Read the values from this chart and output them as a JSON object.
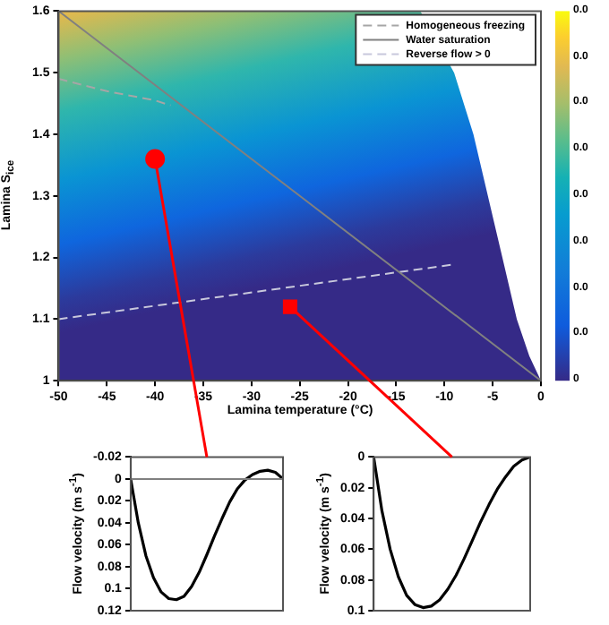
{
  "chart_data": [
    {
      "type": "line",
      "xlabel": "Lamina  temperature (°C)",
      "ylabel": "Lamina S$_{ice}$",
      "xlim": [
        -50,
        0
      ],
      "xticks": [
        -50,
        -45,
        -40,
        -35,
        -30,
        -25,
        -20,
        -15,
        -10,
        -5,
        0
      ],
      "ylim": [
        1,
        1.6
      ],
      "yticks": [
        1,
        1.1,
        1.2,
        1.3,
        1.4,
        1.5,
        1.6
      ],
      "legend": "top right",
      "annotations": [
        "0.0",
        "0.0",
        "0.0",
        "0.0",
        "0.0",
        "0.0",
        "0.0",
        "0.0",
        "0"
      ],
      "series": [
        {
          "name": "Homogeneous freezing",
          "color": "#a6a6a6",
          "line_style": "dashed",
          "x": [
            -50,
            -45,
            -40,
            -38.4
          ],
          "values": [
            1.49,
            1.47,
            1.455,
            1.447
          ]
        },
        {
          "name": "Water saturation",
          "color": "#808080",
          "line_style": "solid",
          "x": [
            -50,
            -25,
            0
          ],
          "values": [
            1.6,
            1.3,
            1.0
          ]
        },
        {
          "name": "Reverse flow > 0",
          "color": "#c8c8dc",
          "line_style": "dashed",
          "x": [
            -50,
            -8.9
          ],
          "values": [
            1.1,
            1.189
          ]
        },
        {
          "type": "scatter",
          "marker": "circle",
          "color": "#ff0000",
          "x": [
            -40
          ],
          "values": [
            1.36
          ]
        },
        {
          "type": "scatter",
          "marker": "square",
          "color": "#ff0000",
          "x": [
            -26
          ],
          "values": [
            1.12
          ]
        }
      ]
    },
    {
      "type": "line",
      "ylabel": "Flow velocity (m s$^{-1}$)",
      "categories": [
        null,
        null,
        null,
        null,
        null,
        null,
        null,
        null,
        null,
        null,
        null,
        null,
        null,
        null,
        null,
        null,
        null,
        null,
        null,
        null,
        null
      ],
      "ylim": [
        0.12,
        -0.02
      ],
      "yticks": [
        -0.02,
        0,
        0.02,
        0.04,
        0.06,
        0.08,
        0.1,
        0.12
      ],
      "ref_lines": [
        {
          "axis": "y",
          "value": 0,
          "color": "#808080"
        }
      ],
      "series": [
        {
          "color": "#000000",
          "line_style": "solid",
          "values": [
            0,
            0.04,
            0.07,
            0.09,
            0.103,
            0.109,
            0.11,
            0.107,
            0.098,
            0.085,
            0.069,
            0.052,
            0.036,
            0.021,
            0.009,
            0.001,
            -0.004,
            -0.007,
            -0.008,
            -0.006,
            0
          ]
        }
      ]
    },
    {
      "type": "line",
      "ylabel": "Flow velocity (m s$^{-1}$)",
      "categories": [
        null,
        null,
        null,
        null,
        null,
        null,
        null,
        null,
        null,
        null,
        null,
        null,
        null,
        null,
        null,
        null,
        null,
        null,
        null,
        null
      ],
      "ylim": [
        0.1,
        0
      ],
      "yticks": [
        0,
        0.02,
        0.04,
        0.06,
        0.08,
        0.1
      ],
      "series": [
        {
          "color": "#000000",
          "line_style": "solid",
          "values": [
            0,
            0.035,
            0.06,
            0.078,
            0.09,
            0.096,
            0.098,
            0.097,
            0.093,
            0.086,
            0.077,
            0.066,
            0.054,
            0.042,
            0.031,
            0.021,
            0.013,
            0.006,
            0.002,
            0
          ]
        }
      ]
    }
  ]
}
